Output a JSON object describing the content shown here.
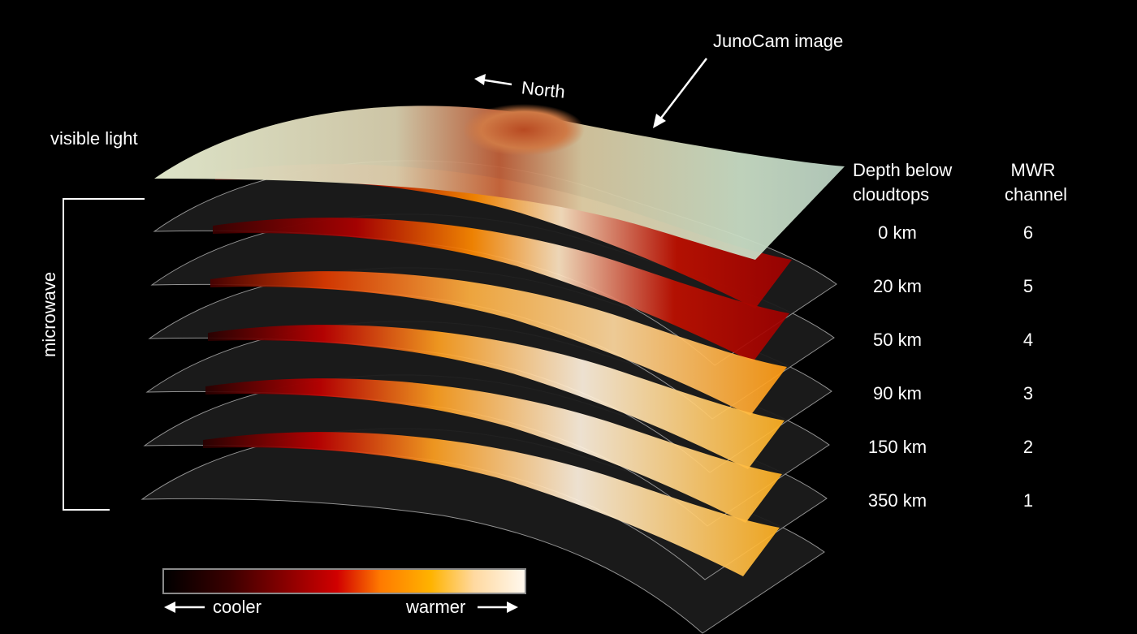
{
  "labels": {
    "visible_light": "visible light",
    "microwave": "microwave",
    "north": "North",
    "junocam": "JunoCam image",
    "depth_header_line1": "Depth below",
    "depth_header_line2": "cloudtops",
    "mwr_header_line1": "MWR",
    "mwr_header_line2": "channel"
  },
  "layers": [
    {
      "depth": "0 km",
      "channel": "6"
    },
    {
      "depth": "20 km",
      "channel": "5"
    },
    {
      "depth": "50 km",
      "channel": "4"
    },
    {
      "depth": "90 km",
      "channel": "3"
    },
    {
      "depth": "150 km",
      "channel": "2"
    },
    {
      "depth": "350 km",
      "channel": "1"
    }
  ],
  "colorbar": {
    "cooler_label": "cooler",
    "warmer_label": "warmer",
    "stops": [
      "#000000",
      "#3a0000",
      "#8a0000",
      "#d10000",
      "#ff7a00",
      "#ffb300",
      "#ffd9a0",
      "#fff8ee"
    ]
  },
  "colors": {
    "background": "#000000",
    "sheet_fill": "#1c1c1c",
    "sheet_edge": "#9a9a9a",
    "text": "#ffffff"
  }
}
